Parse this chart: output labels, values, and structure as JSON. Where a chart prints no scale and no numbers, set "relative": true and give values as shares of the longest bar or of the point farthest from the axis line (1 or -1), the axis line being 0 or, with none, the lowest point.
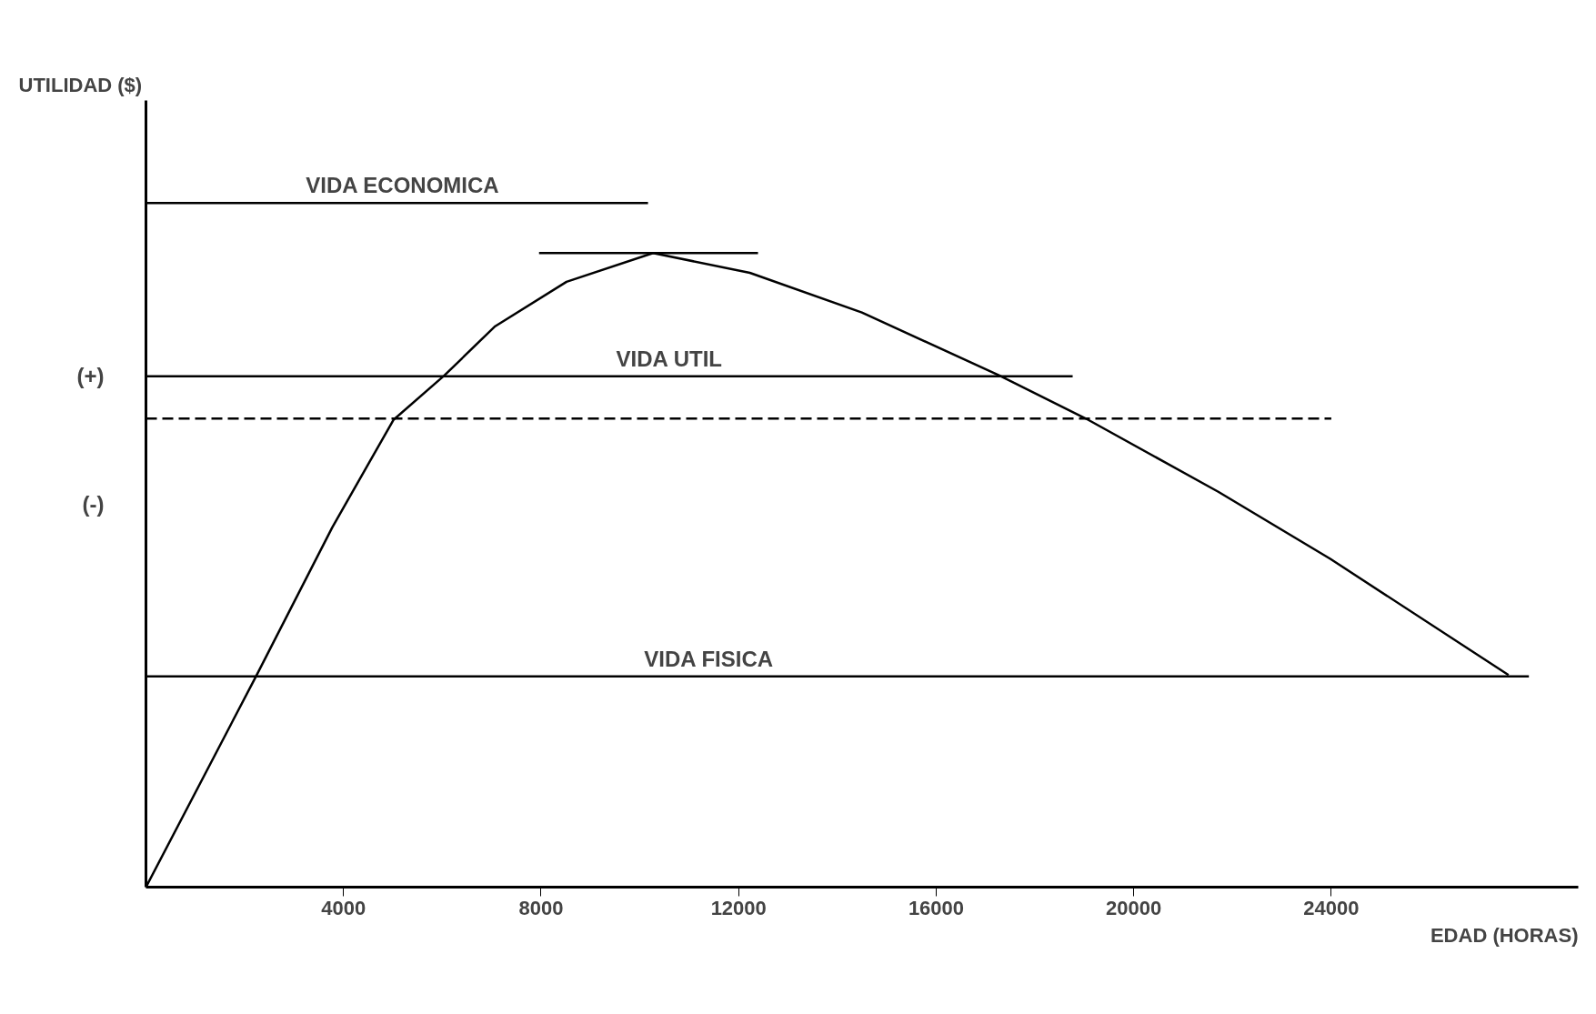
{
  "chart_data": {
    "type": "line",
    "relative": true,
    "xlabel": "EDAD (HORAS)",
    "xlim": [
      0,
      29000
    ],
    "xticks": [
      4000,
      8000,
      12000,
      16000,
      20000,
      24000
    ],
    "grid": false,
    "line_style": "solid",
    "series": [
      {
        "color": "#000000",
        "x": [
          0,
          2227,
          3773,
          5010,
          6041,
          7072,
          8515,
          10268,
          12227,
          14495,
          17278,
          19031,
          21711,
          23979,
          27588
        ],
        "values": [
          0,
          0.308,
          0.526,
          0.683,
          0.748,
          0.82,
          0.885,
          0.927,
          0.898,
          0.84,
          0.748,
          0.685,
          0.578,
          0.48,
          0.31
        ]
      },
      {
        "color": "#000000",
        "x": [
          0,
          10165
        ],
        "values": [
          1.0,
          1.0
        ]
      },
      {
        "color": "#000000",
        "x": [
          7959,
          12392
        ],
        "values": [
          0.927,
          0.927
        ]
      },
      {
        "color": "#000000",
        "x": [
          0,
          18763
        ],
        "values": [
          0.747,
          0.747
        ]
      },
      {
        "color": "#000000",
        "x": [
          0,
          24000
        ],
        "values": [
          0.685,
          0.685
        ],
        "line_style": "dashed"
      },
      {
        "color": "#000000",
        "x": [
          0,
          28000
        ],
        "values": [
          0.308,
          0.308
        ]
      }
    ],
    "annotations": [
      {
        "text": "VIDA ECONOMICA",
        "x": 5200,
        "y": 1.0
      },
      {
        "text": "VIDA UTIL",
        "x": 10600,
        "y": 0.747
      },
      {
        "text": "VIDA FISICA",
        "x": 11400,
        "y": 0.308
      },
      {
        "text": "(+)",
        "x": 0,
        "y": 0.747
      },
      "UTILIDAD ($)",
      "(-)"
    ]
  }
}
